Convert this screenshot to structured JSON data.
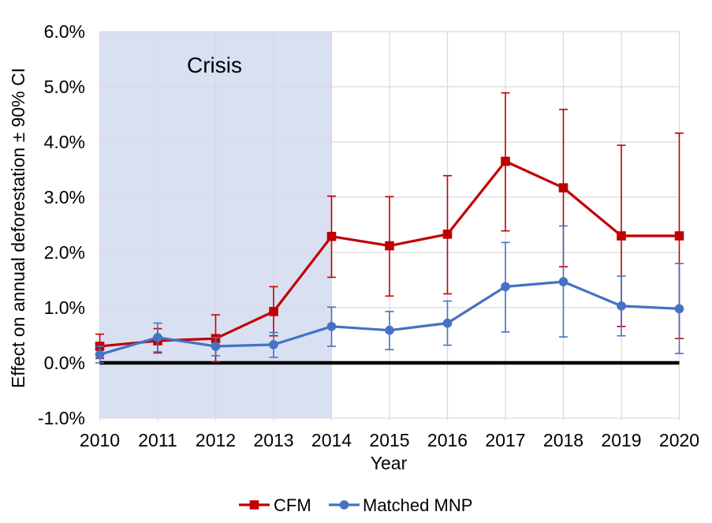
{
  "chart_data": {
    "type": "line",
    "title": "",
    "xlabel": "Year",
    "ylabel": "Effect on annual deforestation ± 90% CI",
    "annotation": "Crisis",
    "ci_level": "90%",
    "x": [
      2010,
      2011,
      2012,
      2013,
      2014,
      2015,
      2016,
      2017,
      2018,
      2019,
      2020
    ],
    "x_tick_labels": [
      "2010",
      "2011",
      "2012",
      "2013",
      "2014",
      "2015",
      "2016",
      "2017",
      "2018",
      "2019",
      "2020"
    ],
    "y_ticks": [
      6,
      5,
      4,
      3,
      2,
      1,
      0,
      -1
    ],
    "y_tick_labels": [
      "6.0%",
      "5.0%",
      "4.0%",
      "3.0%",
      "2.0%",
      "1.0%",
      "0.0%",
      "-1.0%"
    ],
    "ylim": [
      -1,
      6
    ],
    "grid": true,
    "legend_position": "bottom",
    "zero_line_color": "#000000",
    "gridline_color": "#d9d9d9",
    "shaded_region": {
      "label": "Crisis",
      "x_start": 2010,
      "x_end": 2014,
      "color": "#d9e0f2"
    },
    "series": [
      {
        "name": "CFM",
        "color": "#c00000",
        "marker": "square",
        "values_pct": [
          0.3,
          0.4,
          0.44,
          0.93,
          2.29,
          2.12,
          2.33,
          3.65,
          3.17,
          2.3,
          2.3
        ],
        "ci_low_pct": [
          0.08,
          0.18,
          0.02,
          0.49,
          1.55,
          1.21,
          1.25,
          2.39,
          1.74,
          0.66,
          0.44
        ],
        "ci_high_pct": [
          0.52,
          0.62,
          0.87,
          1.38,
          3.02,
          3.01,
          3.39,
          4.89,
          4.59,
          3.94,
          4.16
        ]
      },
      {
        "name": "Matched MNP",
        "color": "#4472c4",
        "marker": "circle",
        "values_pct": [
          0.15,
          0.46,
          0.3,
          0.33,
          0.66,
          0.59,
          0.72,
          1.38,
          1.47,
          1.03,
          0.98
        ],
        "ci_low_pct": [
          0.0,
          0.2,
          0.13,
          0.1,
          0.3,
          0.24,
          0.32,
          0.56,
          0.47,
          0.49,
          0.17
        ],
        "ci_high_pct": [
          0.3,
          0.72,
          0.46,
          0.55,
          1.01,
          0.93,
          1.12,
          2.18,
          2.48,
          1.57,
          1.8
        ]
      }
    ]
  }
}
